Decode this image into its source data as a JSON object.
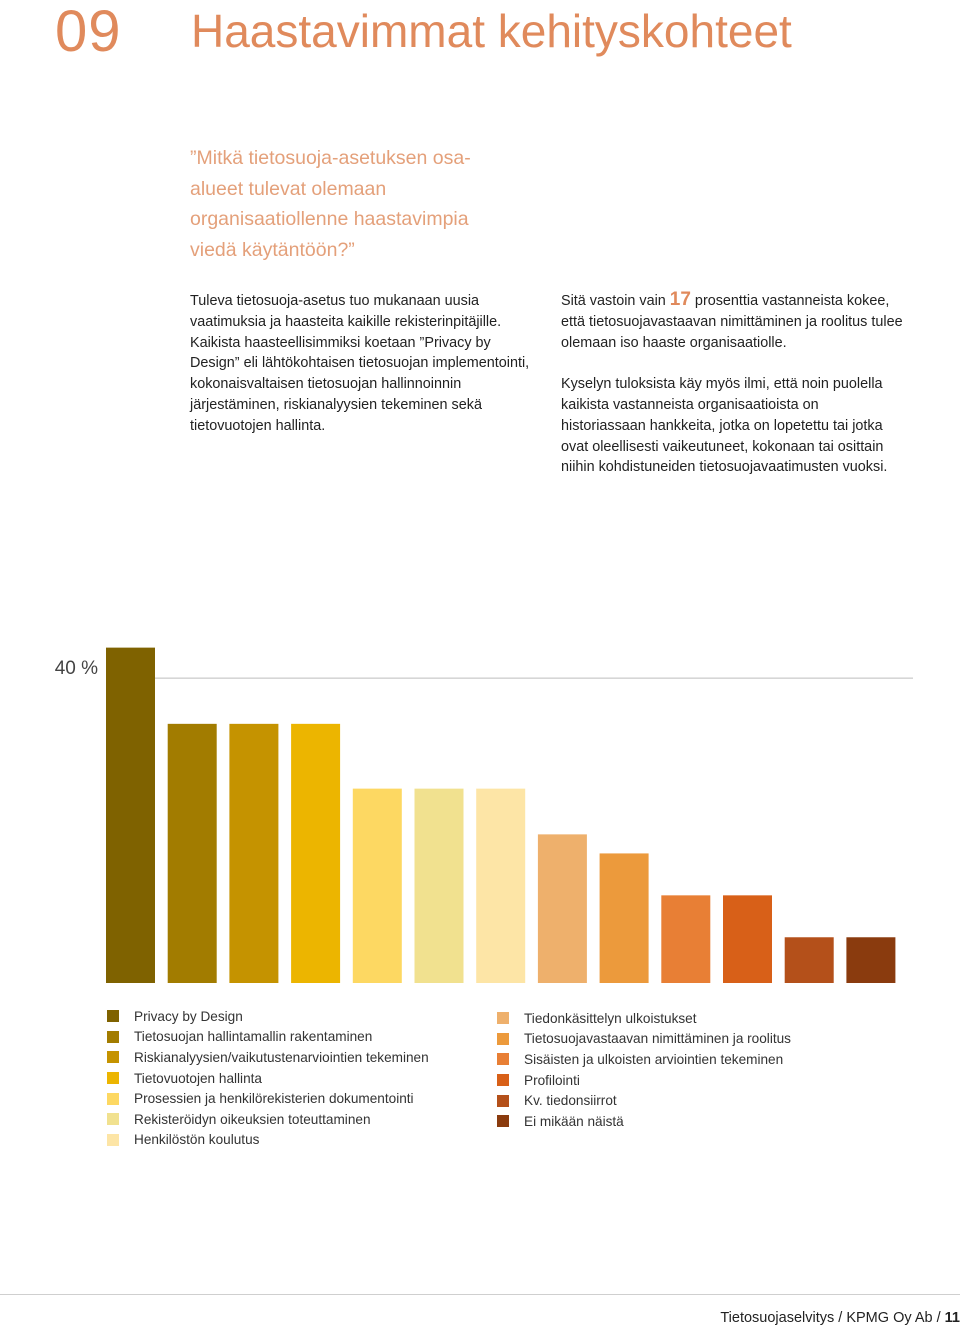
{
  "header": {
    "chapter_number": "09",
    "title": "Haastavimmat kehityskohteet"
  },
  "quote": "”Mitkä tietosuoja-asetuksen osa-alueet tulevat olemaan organisaatiollenne haastavimpia viedä käytäntöön?”",
  "left_column": {
    "paragraph": "Tuleva tietosuoja-asetus tuo mukanaan uusia vaatimuksia ja haasteita kaikille rekisterinpitäjille. Kaikista haasteellisimmiksi koetaan ”Privacy by Design” eli lähtökohtaisen tietosuojan implementointi, kokonaisvaltaisen tietosuojan hallinnoinnin järjestäminen, riskianalyysien tekeminen sekä tietovuotojen hallinta."
  },
  "right_column": {
    "p1_before": "Sitä vastoin vain ",
    "p1_number": "17",
    "p1_after": " prosenttia vastanneista kokee, että tietosuojavastaavan nimittäminen ja roolitus tulee olemaan iso haaste organisaatiolle.",
    "p2": "Kyselyn tuloksista käy myös ilmi, että noin puolella kaikista vastanneista organisaatioista on historiassaan hankkeita, jotka on lopetettu tai jotka ovat oleellisesti vaikeutuneet, kokonaan tai osittain niihin kohdistuneiden tietosuojavaatimusten vuoksi."
  },
  "chart_data": {
    "type": "bar",
    "reference_line": {
      "value": 40,
      "label": "40 %"
    },
    "ylim": [
      0,
      45
    ],
    "grid": false,
    "legend_position": "bottom",
    "categories": [
      "Privacy by Design",
      "Tietosuojan hallintamallin rakentaminen",
      "Riskianalyysien/vaikutustenarviointien tekeminen",
      "Tietovuotojen hallinta",
      "Prosessien ja henkilörekisterien dokumentointi",
      "Rekisteröidyn oikeuksien toteuttaminen",
      "Henkilöstön koulutus",
      "Tiedonkäsittelyn ulkoistukset",
      "Tietosuojavastaavan nimittäminen ja roolitus",
      "Sisäisten ja ulkoisten arviointien tekeminen",
      "Profilointi",
      "Kv. tiedonsiirrot",
      "Ei mikään näistä"
    ],
    "values": [
      44,
      34,
      34,
      34,
      25.5,
      25.5,
      25.5,
      19.5,
      17,
      11.5,
      11.5,
      6,
      6
    ],
    "colors": [
      "#7f6200",
      "#a27c00",
      "#c59300",
      "#ecb500",
      "#fdd862",
      "#f1e18f",
      "#fde5a6",
      "#eeb06c",
      "#ec9a3c",
      "#e87f35",
      "#d86018",
      "#b4501a",
      "#8a3b0e"
    ]
  },
  "footer": {
    "text": "Tietosuojaselvitys / KPMG Oy Ab / ",
    "page": "11"
  }
}
